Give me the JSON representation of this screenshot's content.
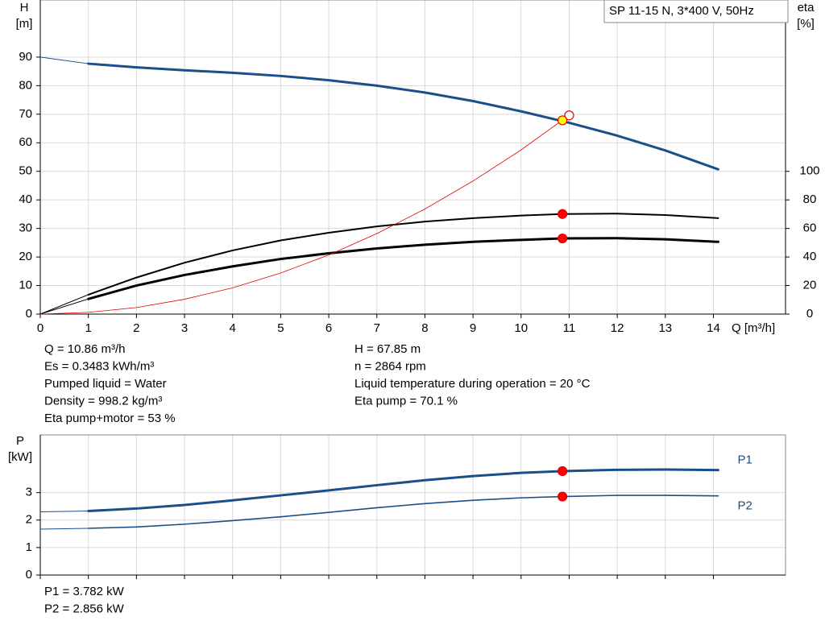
{
  "chart_data": [
    {
      "type": "line",
      "title": "SP 11-15 N, 3*400 V, 50Hz",
      "y_label": [
        "H",
        "[m]"
      ],
      "y2_label": [
        "eta",
        "[%]"
      ],
      "x_label": "Q [m³/h]",
      "xlim": [
        0,
        15.5
      ],
      "xticks": [
        0,
        1,
        2,
        3,
        4,
        5,
        6,
        7,
        8,
        9,
        10,
        11,
        12,
        13,
        14
      ],
      "ylim": [
        0,
        110
      ],
      "yticks": [
        0,
        10,
        20,
        30,
        40,
        50,
        60,
        70,
        80,
        90
      ],
      "y2lim": [
        0,
        220
      ],
      "y2ticks": [
        0,
        20,
        40,
        60,
        80,
        100
      ],
      "grid": true,
      "series": [
        {
          "color": "#1a4f8a",
          "width": 1,
          "x": [
            0,
            1
          ],
          "values": [
            90,
            87.7
          ]
        },
        {
          "color": "#1a4f8a",
          "width": 3,
          "x": [
            1,
            2,
            3,
            4,
            5,
            6,
            7,
            8,
            9,
            10,
            11,
            12,
            13,
            14.1
          ],
          "values": [
            87.7,
            86.4,
            85.4,
            84.5,
            83.4,
            81.9,
            80.0,
            77.6,
            74.6,
            71.0,
            67.0,
            62.5,
            57.3,
            50.7
          ]
        },
        {
          "color": "#000000",
          "width": 1,
          "axis": "y2",
          "x": [
            0,
            1
          ],
          "values": [
            0,
            13.6
          ]
        },
        {
          "color": "#000000",
          "width": 2,
          "axis": "y2",
          "x": [
            1,
            2,
            3,
            4,
            5,
            6,
            7,
            8,
            9,
            10,
            10.86,
            12,
            13,
            14.1
          ],
          "values": [
            13.6,
            25.6,
            36,
            44.6,
            51.6,
            57,
            61.4,
            64.8,
            67.2,
            69,
            70.1,
            70.4,
            69.4,
            67.2
          ]
        },
        {
          "color": "#000000",
          "width": 1,
          "axis": "y2",
          "x": [
            0,
            1
          ],
          "values": [
            0,
            10.6
          ]
        },
        {
          "color": "#000000",
          "width": 3,
          "axis": "y2",
          "x": [
            1,
            2,
            3,
            4,
            5,
            6,
            7,
            8,
            9,
            10,
            10.86,
            12,
            13,
            14.1
          ],
          "values": [
            10.6,
            20,
            27.4,
            33.4,
            38.6,
            42.6,
            46,
            48.6,
            50.6,
            52,
            53,
            53.2,
            52.4,
            50.6
          ]
        },
        {
          "color": "#e00000",
          "width": 0.8,
          "x": [
            0,
            1,
            2,
            3,
            4,
            5,
            6,
            7,
            8,
            9,
            10,
            11
          ],
          "values": [
            0,
            0.6,
            2.3,
            5.2,
            9.2,
            14.4,
            20.7,
            28.2,
            36.8,
            46.6,
            57.5,
            69.6
          ]
        }
      ],
      "points": [
        {
          "x": 11,
          "y": 69.6,
          "color": "#ffffff",
          "stroke": "#e00000"
        },
        {
          "x": 10.86,
          "y": 67.85,
          "color": "#ffff00",
          "stroke": "#e00000"
        },
        {
          "x": 10.86,
          "y": 70.1,
          "axis": "y2",
          "color": "#ff0000",
          "stroke": "#e00000"
        },
        {
          "x": 10.86,
          "y": 53,
          "axis": "y2",
          "color": "#ff0000",
          "stroke": "#e00000"
        }
      ],
      "annotations": {
        "left": [
          "Q = 10.86 m³/h",
          "Es = 0.3483 kWh/m³",
          "Pumped liquid = Water",
          "Density = 998.2 kg/m³",
          "Eta pump+motor = 53 %"
        ],
        "right": [
          "H = 67.85 m",
          "n = 2864 rpm",
          "Liquid temperature during operation = 20 °C",
          "Eta pump = 70.1 %"
        ]
      }
    },
    {
      "type": "line",
      "y_label": [
        "P",
        "[kW]"
      ],
      "xlim": [
        0,
        15.5
      ],
      "xticks": [
        0,
        1,
        2,
        3,
        4,
        5,
        6,
        7,
        8,
        9,
        10,
        11,
        12,
        13,
        14
      ],
      "ylim": [
        0,
        5.1
      ],
      "yticks": [
        0,
        1,
        2,
        3
      ],
      "grid": true,
      "series": [
        {
          "color": "#1a4f8a",
          "width": 1,
          "x": [
            0,
            1
          ],
          "values": [
            2.3,
            2.33
          ]
        },
        {
          "name": "P1",
          "color": "#1a4f8a",
          "width": 3,
          "x": [
            1,
            2,
            3,
            4,
            5,
            6,
            7,
            8,
            9,
            10,
            10.86,
            12,
            13,
            14.1
          ],
          "values": [
            2.33,
            2.42,
            2.55,
            2.72,
            2.9,
            3.08,
            3.27,
            3.45,
            3.6,
            3.72,
            3.782,
            3.83,
            3.84,
            3.82
          ]
        },
        {
          "color": "#1a4f8a",
          "width": 1,
          "x": [
            0,
            1
          ],
          "values": [
            1.67,
            1.7
          ]
        },
        {
          "name": "P2",
          "color": "#1a4f8a",
          "width": 1.6,
          "x": [
            1,
            2,
            3,
            4,
            5,
            6,
            7,
            8,
            9,
            10,
            10.86,
            12,
            13,
            14.1
          ],
          "values": [
            1.7,
            1.75,
            1.85,
            1.98,
            2.12,
            2.28,
            2.45,
            2.6,
            2.72,
            2.81,
            2.856,
            2.9,
            2.9,
            2.88
          ]
        }
      ],
      "points": [
        {
          "x": 10.86,
          "y": 3.782,
          "color": "#ff0000",
          "stroke": "#e00000"
        },
        {
          "x": 10.86,
          "y": 2.856,
          "color": "#ff0000",
          "stroke": "#e00000"
        }
      ],
      "annotations": {
        "left": [
          "P1 = 3.782 kW",
          "P2 = 2.856 kW"
        ]
      }
    }
  ]
}
